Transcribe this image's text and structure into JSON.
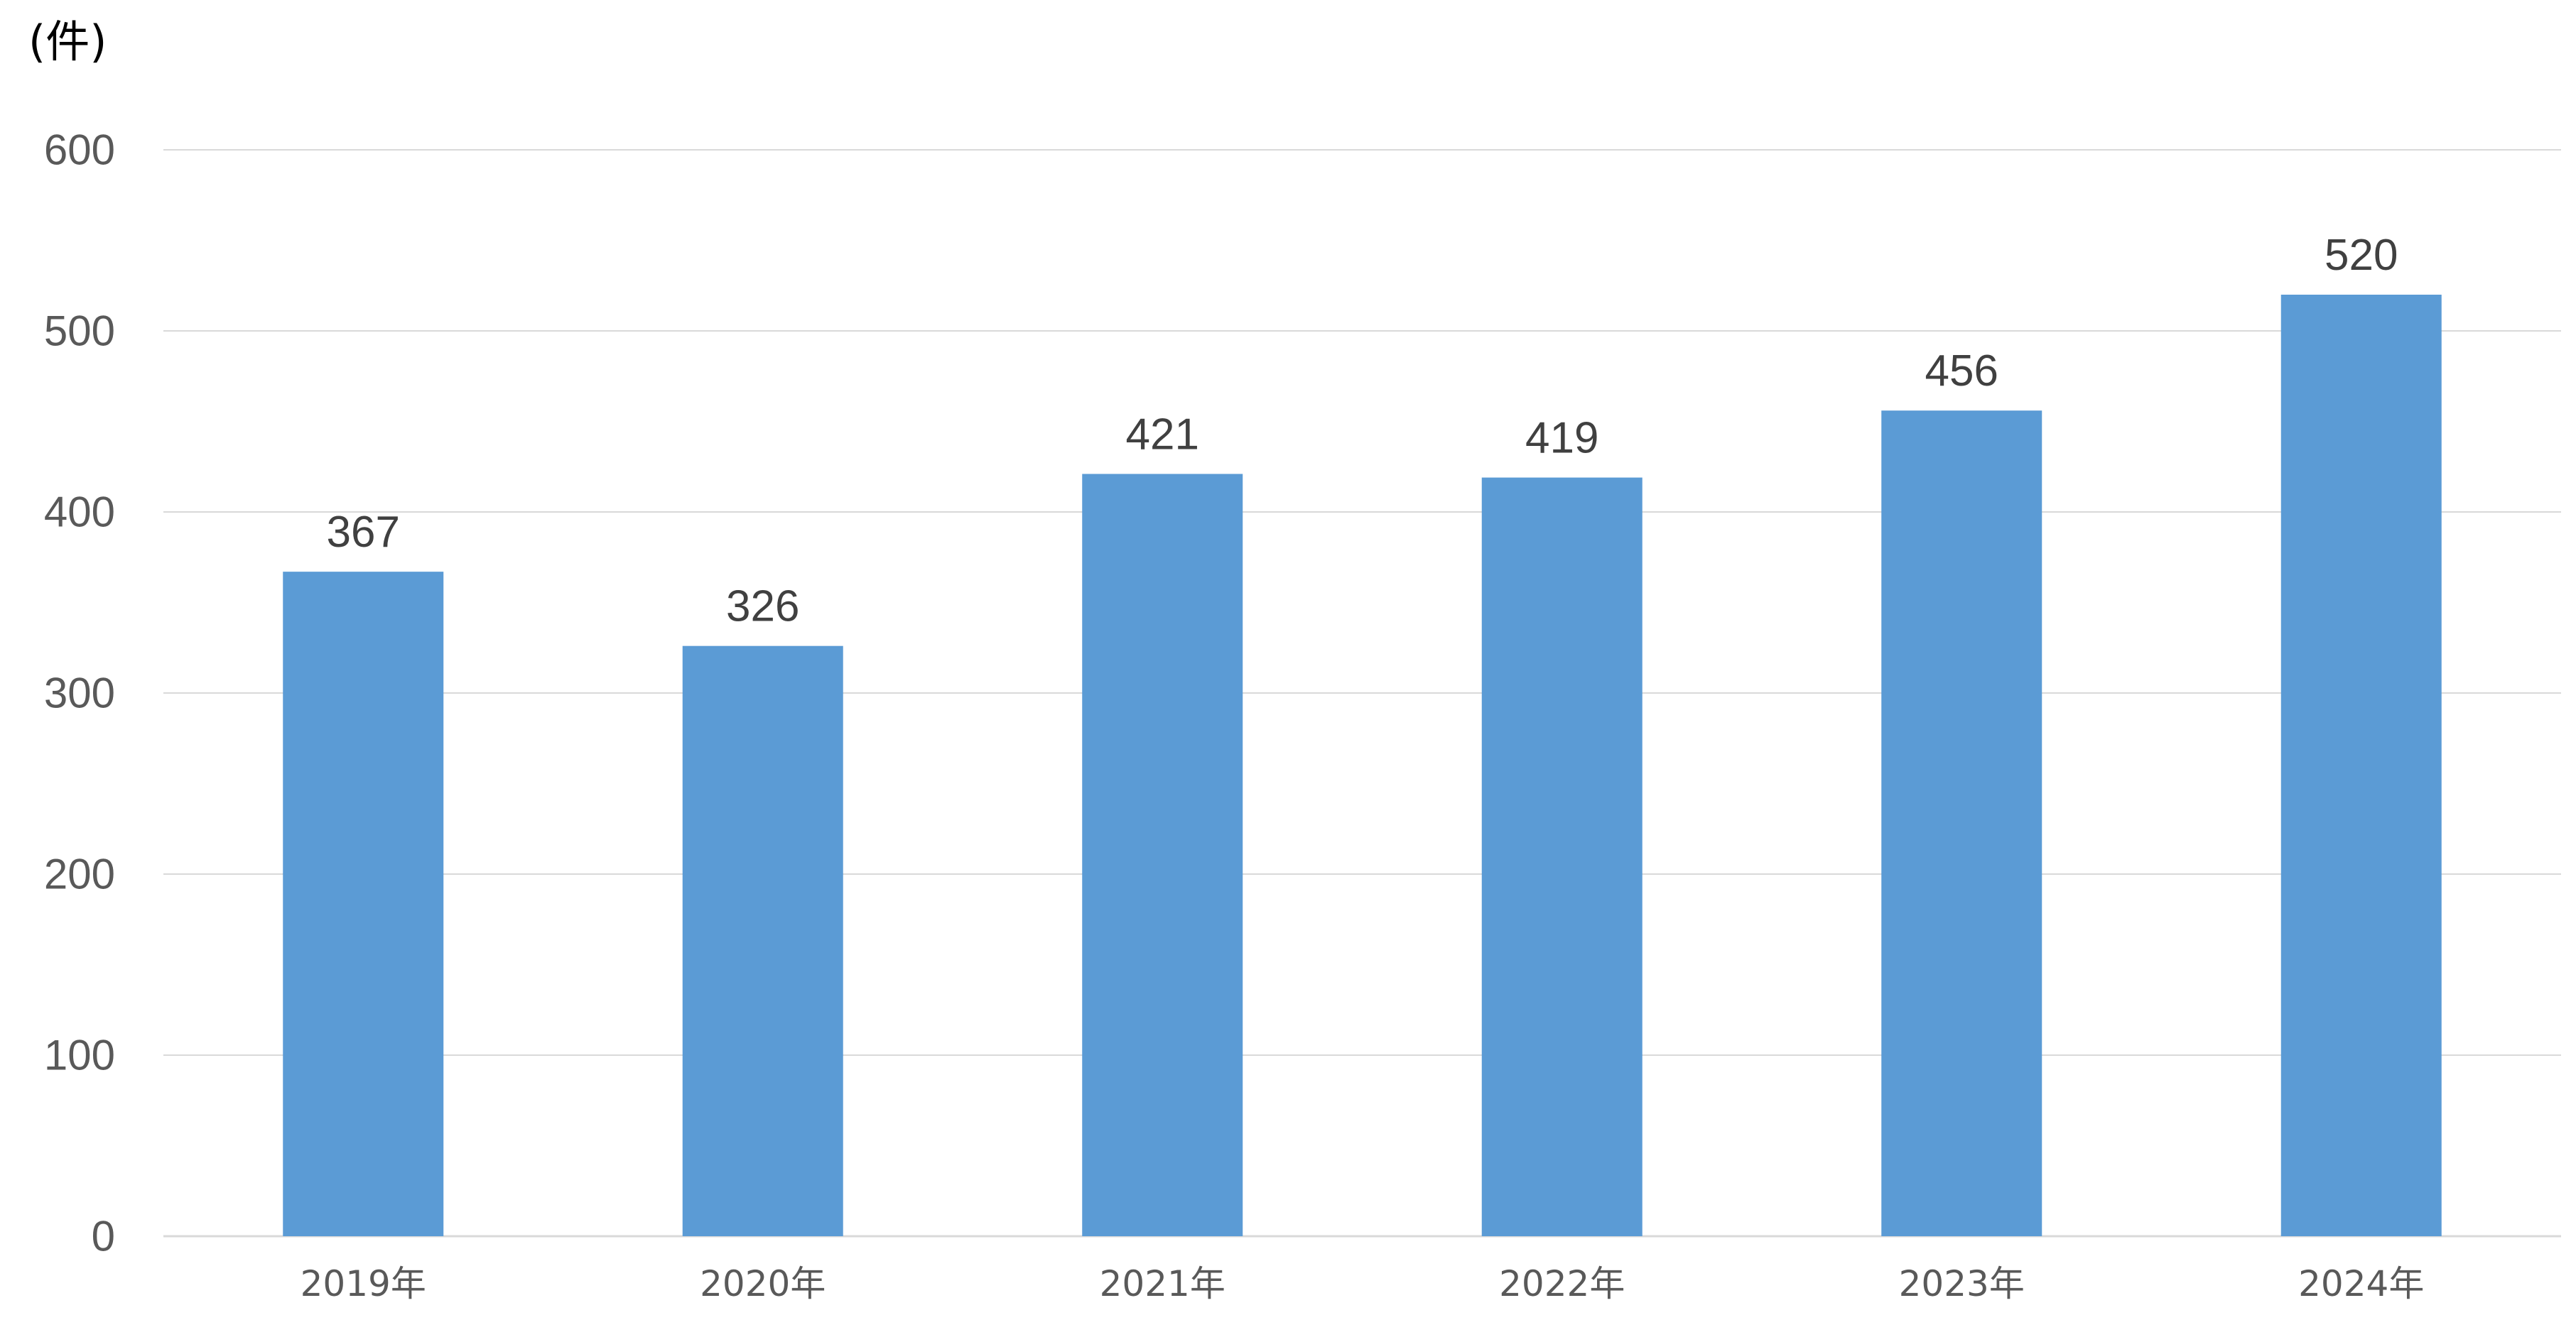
{
  "chart_data": {
    "type": "bar",
    "y_unit_label": "(件)",
    "categories": [
      "2019年",
      "2020年",
      "2021年",
      "2022年",
      "2023年",
      "2024年"
    ],
    "values": [
      367,
      326,
      421,
      419,
      456,
      520
    ],
    "ylim": [
      0,
      600
    ],
    "yticks": [
      0,
      100,
      200,
      300,
      400,
      500,
      600
    ],
    "grid": true,
    "data_labels": true,
    "colors": {
      "bar": "#5B9BD5",
      "grid": "#D9D9D9",
      "axis_line": "#D9D9D9",
      "tick_text": "#595959",
      "data_label_text": "#404040"
    }
  }
}
